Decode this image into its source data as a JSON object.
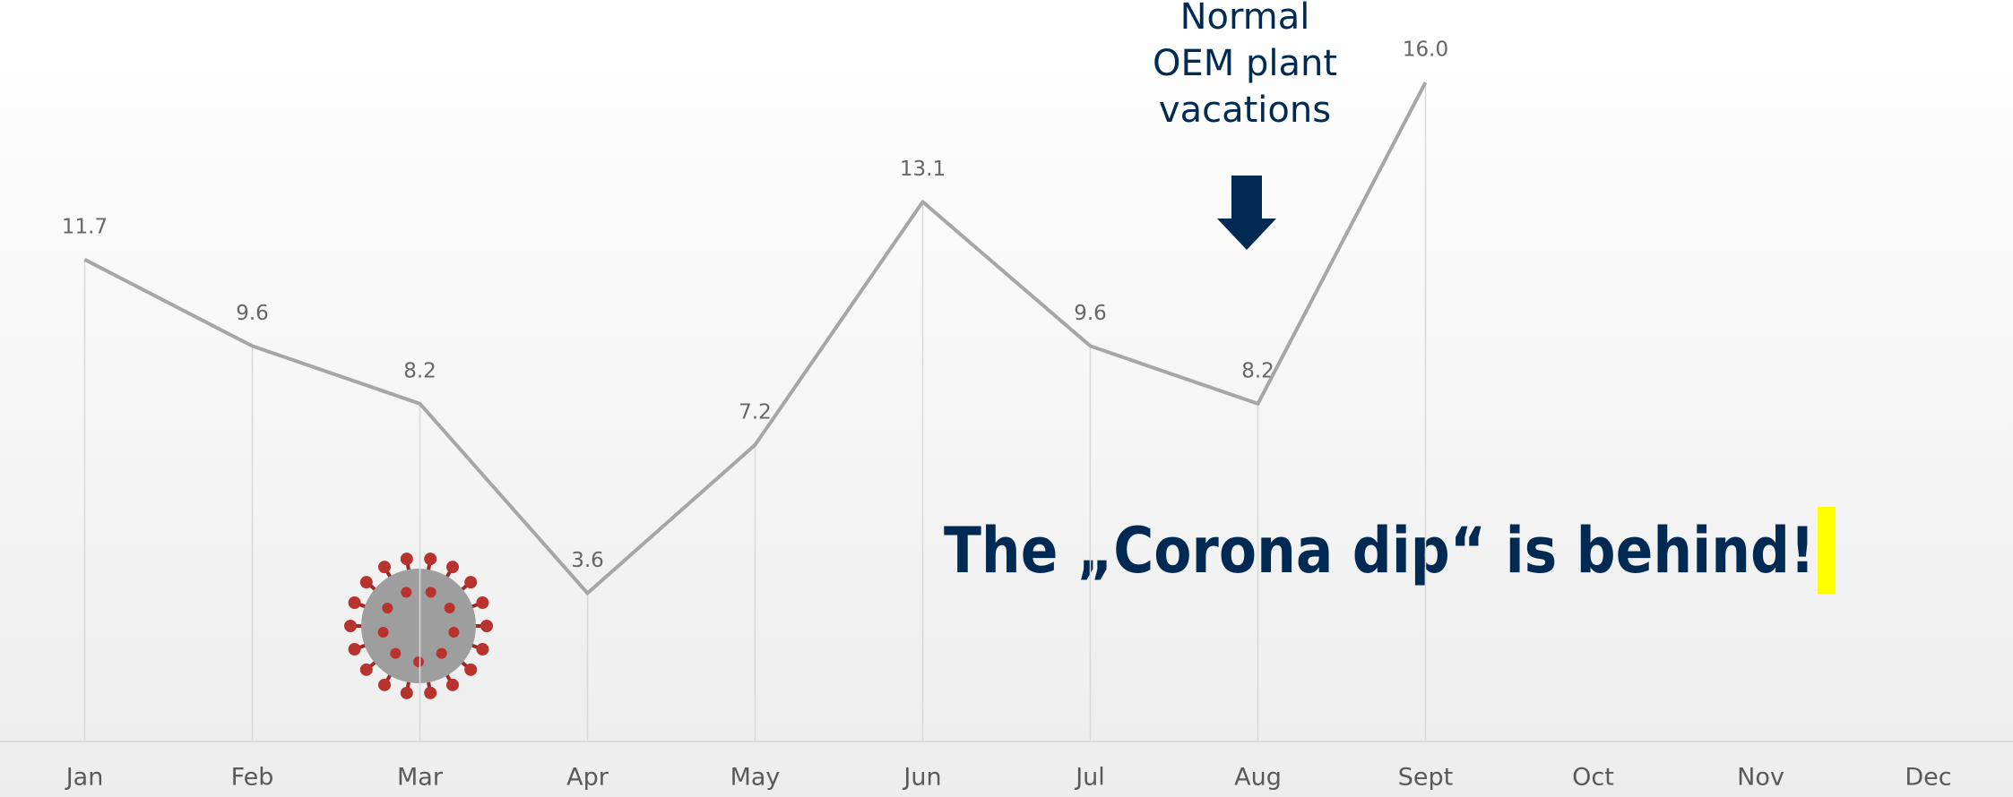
{
  "chart_data": {
    "type": "line",
    "categories": [
      "Jan",
      "Feb",
      "Mar",
      "Apr",
      "May",
      "Jun",
      "Jul",
      "Aug",
      "Sept",
      "Oct",
      "Nov",
      "Dec"
    ],
    "series": [
      {
        "color": "#a6a6a6",
        "values": [
          11.7,
          9.6,
          8.2,
          3.6,
          7.2,
          13.1,
          9.6,
          8.2,
          16.0,
          null,
          null,
          null
        ],
        "value_labels": [
          "11.7",
          "9.6",
          "8.2",
          "3.6",
          "7.2",
          "13.1",
          "9.6",
          "8.2",
          "16.0",
          null,
          null,
          null
        ]
      }
    ],
    "ylim": [
      0,
      18
    ],
    "annotations": {
      "vacation_note": [
        "Normal",
        "OEM plant",
        "vacations"
      ],
      "headline": "The „Corona dip“ is behind!"
    }
  }
}
